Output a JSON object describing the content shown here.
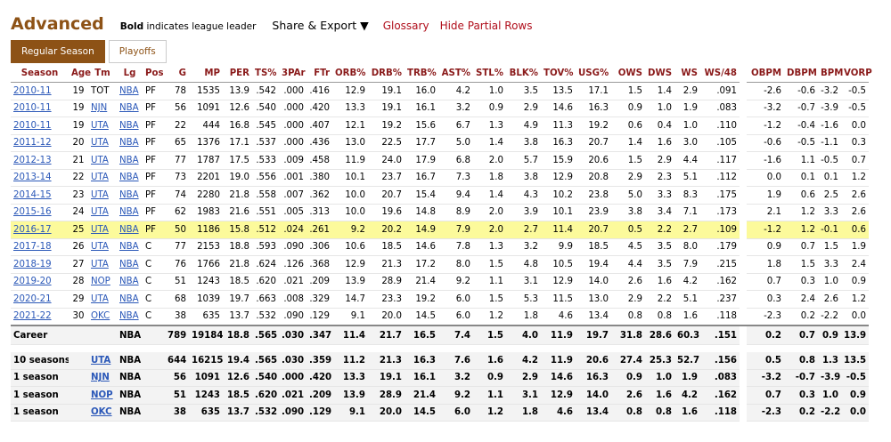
{
  "header": {
    "title": "Advanced",
    "note_bold": "Bold",
    "note": "indicates league leader",
    "share": "Share & Export ▼",
    "glossary": "Glossary",
    "hide": "Hide Partial Rows"
  },
  "tabs": [
    "Regular Season",
    "Playoffs"
  ],
  "table": {
    "columns": [
      "Season",
      "Age",
      "Tm",
      "Lg",
      "Pos",
      "G",
      "MP",
      "PER",
      "TS%",
      "3PAr",
      "FTr",
      "ORB%",
      "DRB%",
      "TRB%",
      "AST%",
      "STL%",
      "BLK%",
      "TOV%",
      "USG%",
      "OWS",
      "DWS",
      "WS",
      "WS/48",
      "OBPM",
      "DBPM",
      "BPM",
      "VORP"
    ],
    "rows": [
      [
        "2010-11",
        "19",
        "TOT",
        "NBA",
        "PF",
        "78",
        "1535",
        "13.9",
        ".542",
        ".000",
        ".416",
        "12.9",
        "19.1",
        "16.0",
        "4.2",
        "1.0",
        "3.5",
        "13.5",
        "17.1",
        "1.5",
        "1.4",
        "2.9",
        ".091",
        "-2.6",
        "-0.6",
        "-3.2",
        "-0.5"
      ],
      [
        "2010-11",
        "19",
        "NJN",
        "NBA",
        "PF",
        "56",
        "1091",
        "12.6",
        ".540",
        ".000",
        ".420",
        "13.3",
        "19.1",
        "16.1",
        "3.2",
        "0.9",
        "2.9",
        "14.6",
        "16.3",
        "0.9",
        "1.0",
        "1.9",
        ".083",
        "-3.2",
        "-0.7",
        "-3.9",
        "-0.5"
      ],
      [
        "2010-11",
        "19",
        "UTA",
        "NBA",
        "PF",
        "22",
        "444",
        "16.8",
        ".545",
        ".000",
        ".407",
        "12.1",
        "19.2",
        "15.6",
        "6.7",
        "1.3",
        "4.9",
        "11.3",
        "19.2",
        "0.6",
        "0.4",
        "1.0",
        ".110",
        "-1.2",
        "-0.4",
        "-1.6",
        "0.0"
      ],
      [
        "2011-12",
        "20",
        "UTA",
        "NBA",
        "PF",
        "65",
        "1376",
        "17.1",
        ".537",
        ".000",
        ".436",
        "13.0",
        "22.5",
        "17.7",
        "5.0",
        "1.4",
        "3.8",
        "16.3",
        "20.7",
        "1.4",
        "1.6",
        "3.0",
        ".105",
        "-0.6",
        "-0.5",
        "-1.1",
        "0.3"
      ],
      [
        "2012-13",
        "21",
        "UTA",
        "NBA",
        "PF",
        "77",
        "1787",
        "17.5",
        ".533",
        ".009",
        ".458",
        "11.9",
        "24.0",
        "17.9",
        "6.8",
        "2.0",
        "5.7",
        "15.9",
        "20.6",
        "1.5",
        "2.9",
        "4.4",
        ".117",
        "-1.6",
        "1.1",
        "-0.5",
        "0.7"
      ],
      [
        "2013-14",
        "22",
        "UTA",
        "NBA",
        "PF",
        "73",
        "2201",
        "19.0",
        ".556",
        ".001",
        ".380",
        "10.1",
        "23.7",
        "16.7",
        "7.3",
        "1.8",
        "3.8",
        "12.9",
        "20.8",
        "2.9",
        "2.3",
        "5.1",
        ".112",
        "0.0",
        "0.1",
        "0.1",
        "1.2"
      ],
      [
        "2014-15",
        "23",
        "UTA",
        "NBA",
        "PF",
        "74",
        "2280",
        "21.8",
        ".558",
        ".007",
        ".362",
        "10.0",
        "20.7",
        "15.4",
        "9.4",
        "1.4",
        "4.3",
        "10.2",
        "23.8",
        "5.0",
        "3.3",
        "8.3",
        ".175",
        "1.9",
        "0.6",
        "2.5",
        "2.6"
      ],
      [
        "2015-16",
        "24",
        "UTA",
        "NBA",
        "PF",
        "62",
        "1983",
        "21.6",
        ".551",
        ".005",
        ".313",
        "10.0",
        "19.6",
        "14.8",
        "8.9",
        "2.0",
        "3.9",
        "10.1",
        "23.9",
        "3.8",
        "3.4",
        "7.1",
        ".173",
        "2.1",
        "1.2",
        "3.3",
        "2.6"
      ],
      [
        "2016-17",
        "25",
        "UTA",
        "NBA",
        "PF",
        "50",
        "1186",
        "15.8",
        ".512",
        ".024",
        ".261",
        "9.2",
        "20.2",
        "14.9",
        "7.9",
        "2.0",
        "2.7",
        "11.4",
        "20.7",
        "0.5",
        "2.2",
        "2.7",
        ".109",
        "-1.2",
        "1.2",
        "-0.1",
        "0.6"
      ],
      [
        "2017-18",
        "26",
        "UTA",
        "NBA",
        "C",
        "77",
        "2153",
        "18.8",
        ".593",
        ".090",
        ".306",
        "10.6",
        "18.5",
        "14.6",
        "7.8",
        "1.3",
        "3.2",
        "9.9",
        "18.5",
        "4.5",
        "3.5",
        "8.0",
        ".179",
        "0.9",
        "0.7",
        "1.5",
        "1.9"
      ],
      [
        "2018-19",
        "27",
        "UTA",
        "NBA",
        "C",
        "76",
        "1766",
        "21.8",
        ".624",
        ".126",
        ".368",
        "12.9",
        "21.3",
        "17.2",
        "8.0",
        "1.5",
        "4.8",
        "10.5",
        "19.4",
        "4.4",
        "3.5",
        "7.9",
        ".215",
        "1.8",
        "1.5",
        "3.3",
        "2.4"
      ],
      [
        "2019-20",
        "28",
        "NOP",
        "NBA",
        "C",
        "51",
        "1243",
        "18.5",
        ".620",
        ".021",
        ".209",
        "13.9",
        "28.9",
        "21.4",
        "9.2",
        "1.1",
        "3.1",
        "12.9",
        "14.0",
        "2.6",
        "1.6",
        "4.2",
        ".162",
        "0.7",
        "0.3",
        "1.0",
        "0.9"
      ],
      [
        "2020-21",
        "29",
        "UTA",
        "NBA",
        "C",
        "68",
        "1039",
        "19.7",
        ".663",
        ".008",
        ".329",
        "14.7",
        "23.3",
        "19.2",
        "6.0",
        "1.5",
        "5.3",
        "11.5",
        "13.0",
        "2.9",
        "2.2",
        "5.1",
        ".237",
        "0.3",
        "2.4",
        "2.6",
        "1.2"
      ],
      [
        "2021-22",
        "30",
        "OKC",
        "NBA",
        "C",
        "38",
        "635",
        "13.7",
        ".532",
        ".090",
        ".129",
        "9.1",
        "20.0",
        "14.5",
        "6.0",
        "1.2",
        "1.8",
        "4.6",
        "13.4",
        "0.8",
        "0.8",
        "1.6",
        ".118",
        "-2.3",
        "0.2",
        "-2.2",
        "0.0"
      ]
    ],
    "career": [
      "Career",
      null,
      null,
      "NBA",
      null,
      "789",
      "19184",
      "18.8",
      ".565",
      ".030",
      ".347",
      "11.4",
      "21.7",
      "16.5",
      "7.4",
      "1.5",
      "4.0",
      "11.9",
      "19.7",
      "31.8",
      "28.6",
      "60.3",
      ".151",
      "0.2",
      "0.7",
      "0.9",
      "13.9"
    ],
    "summary": [
      [
        "10 seasons",
        null,
        "UTA",
        "NBA",
        null,
        "644",
        "16215",
        "19.4",
        ".565",
        ".030",
        ".359",
        "11.2",
        "21.3",
        "16.3",
        "7.6",
        "1.6",
        "4.2",
        "11.9",
        "20.6",
        "27.4",
        "25.3",
        "52.7",
        ".156",
        "0.5",
        "0.8",
        "1.3",
        "13.5"
      ],
      [
        "1 season",
        null,
        "NJN",
        "NBA",
        null,
        "56",
        "1091",
        "12.6",
        ".540",
        ".000",
        ".420",
        "13.3",
        "19.1",
        "16.1",
        "3.2",
        "0.9",
        "2.9",
        "14.6",
        "16.3",
        "0.9",
        "1.0",
        "1.9",
        ".083",
        "-3.2",
        "-0.7",
        "-3.9",
        "-0.5"
      ],
      [
        "1 season",
        null,
        "NOP",
        "NBA",
        null,
        "51",
        "1243",
        "18.5",
        ".620",
        ".021",
        ".209",
        "13.9",
        "28.9",
        "21.4",
        "9.2",
        "1.1",
        "3.1",
        "12.9",
        "14.0",
        "2.6",
        "1.6",
        "4.2",
        ".162",
        "0.7",
        "0.3",
        "1.0",
        "0.9"
      ],
      [
        "1 season",
        null,
        "OKC",
        "NBA",
        null,
        "38",
        "635",
        "13.7",
        ".532",
        ".090",
        ".129",
        "9.1",
        "20.0",
        "14.5",
        "6.0",
        "1.2",
        "1.8",
        "4.6",
        "13.4",
        "0.8",
        "0.8",
        "1.6",
        ".118",
        "-2.3",
        "0.2",
        "-2.2",
        "0.0"
      ]
    ]
  }
}
